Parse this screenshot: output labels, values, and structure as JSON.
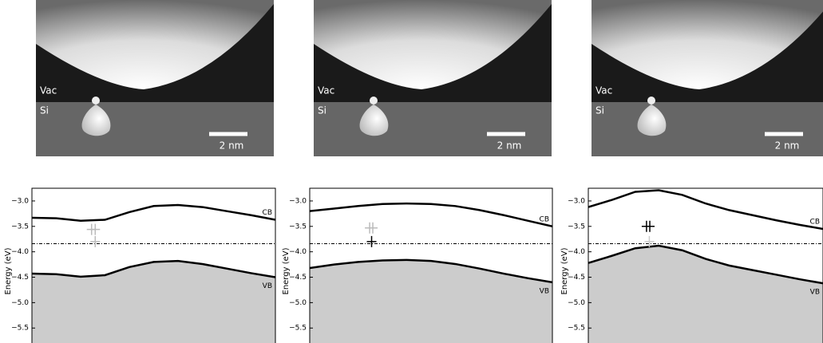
{
  "images": [
    {
      "vac": "Vac",
      "si": "Si",
      "scale": "2 nm"
    },
    {
      "vac": "Vac",
      "si": "Si",
      "scale": "2 nm"
    },
    {
      "vac": "Vac",
      "si": "Si",
      "scale": "2 nm"
    }
  ],
  "chart_data": [
    {
      "type": "line",
      "ylabel": "Energy (eV)",
      "x": [
        0,
        1,
        2,
        3,
        4,
        5,
        6,
        7,
        8,
        9,
        10
      ],
      "xlim": [
        0,
        10
      ],
      "ylim": [
        -5.81,
        -2.75
      ],
      "yticks": [
        {
          "value": -3.0,
          "label": "−3.0"
        },
        {
          "value": -3.5,
          "label": "−3.5"
        },
        {
          "value": -4.0,
          "label": "−4.0"
        },
        {
          "value": -4.5,
          "label": "−4.5"
        },
        {
          "value": -5.0,
          "label": "−5.0"
        },
        {
          "value": -5.5,
          "label": "−5.5"
        }
      ],
      "series": [
        {
          "name": "CB",
          "color": "#000000",
          "values": [
            -3.33,
            -3.34,
            -3.39,
            -3.37,
            -3.22,
            -3.1,
            -3.08,
            -3.12,
            -3.2,
            -3.28,
            -3.37
          ]
        },
        {
          "name": "VB",
          "color": "#000000",
          "fill": "#cccccc",
          "values": [
            -4.43,
            -4.44,
            -4.49,
            -4.46,
            -4.3,
            -4.2,
            -4.18,
            -4.24,
            -4.33,
            -4.42,
            -4.5
          ]
        }
      ],
      "fermi_level": -3.84,
      "markers": [
        {
          "color": "#bbbbbb",
          "x": [
            2.45,
            2.6,
            2.6
          ],
          "y": [
            -3.56,
            -3.56,
            -3.8
          ]
        }
      ]
    },
    {
      "type": "line",
      "ylabel": "Energy (eV)",
      "x": [
        0,
        1,
        2,
        3,
        4,
        5,
        6,
        7,
        8,
        9,
        10
      ],
      "xlim": [
        0,
        10
      ],
      "ylim": [
        -5.81,
        -2.75
      ],
      "yticks": [
        {
          "value": -3.0,
          "label": "−3.0"
        },
        {
          "value": -3.5,
          "label": "−3.5"
        },
        {
          "value": -4.0,
          "label": "−4.0"
        },
        {
          "value": -4.5,
          "label": "−4.5"
        },
        {
          "value": -5.0,
          "label": "−5.0"
        },
        {
          "value": -5.5,
          "label": "−5.5"
        }
      ],
      "series": [
        {
          "name": "CB",
          "color": "#000000",
          "values": [
            -3.2,
            -3.15,
            -3.1,
            -3.06,
            -3.05,
            -3.06,
            -3.1,
            -3.18,
            -3.28,
            -3.39,
            -3.5
          ]
        },
        {
          "name": "VB",
          "color": "#000000",
          "fill": "#cccccc",
          "values": [
            -4.32,
            -4.25,
            -4.2,
            -4.17,
            -4.16,
            -4.18,
            -4.24,
            -4.33,
            -4.43,
            -4.52,
            -4.6
          ]
        }
      ],
      "fermi_level": -3.84,
      "markers": [
        {
          "color": "#bbbbbb",
          "x": [
            2.47,
            2.6
          ],
          "y": [
            -3.53,
            -3.53
          ]
        },
        {
          "color": "#000000",
          "x": [
            2.55
          ],
          "y": [
            -3.8
          ]
        }
      ]
    },
    {
      "type": "line",
      "ylabel": "Energy (eV)",
      "x": [
        0,
        1,
        2,
        3,
        4,
        5,
        6,
        7,
        8,
        9,
        10
      ],
      "xlim": [
        0,
        10
      ],
      "ylim": [
        -5.81,
        -2.75
      ],
      "yticks": [
        {
          "value": -3.0,
          "label": "−3.0"
        },
        {
          "value": -3.5,
          "label": "−3.5"
        },
        {
          "value": -4.0,
          "label": "−4.0"
        },
        {
          "value": -4.5,
          "label": "−4.5"
        },
        {
          "value": -5.0,
          "label": "−5.0"
        },
        {
          "value": -5.5,
          "label": "−5.5"
        }
      ],
      "series": [
        {
          "name": "CB",
          "color": "#000000",
          "values": [
            -3.12,
            -2.98,
            -2.82,
            -2.79,
            -2.88,
            -3.05,
            -3.18,
            -3.28,
            -3.38,
            -3.47,
            -3.55
          ]
        },
        {
          "name": "VB",
          "color": "#000000",
          "fill": "#cccccc",
          "values": [
            -4.22,
            -4.08,
            -3.93,
            -3.88,
            -3.97,
            -4.14,
            -4.27,
            -4.36,
            -4.45,
            -4.54,
            -4.62
          ]
        }
      ],
      "fermi_level": -3.84,
      "markers": [
        {
          "color": "#000000",
          "x": [
            2.48,
            2.62
          ],
          "y": [
            -3.5,
            -3.5
          ]
        },
        {
          "color": "#cccccc",
          "x": [
            2.6
          ],
          "y": [
            -3.8
          ]
        }
      ]
    }
  ]
}
